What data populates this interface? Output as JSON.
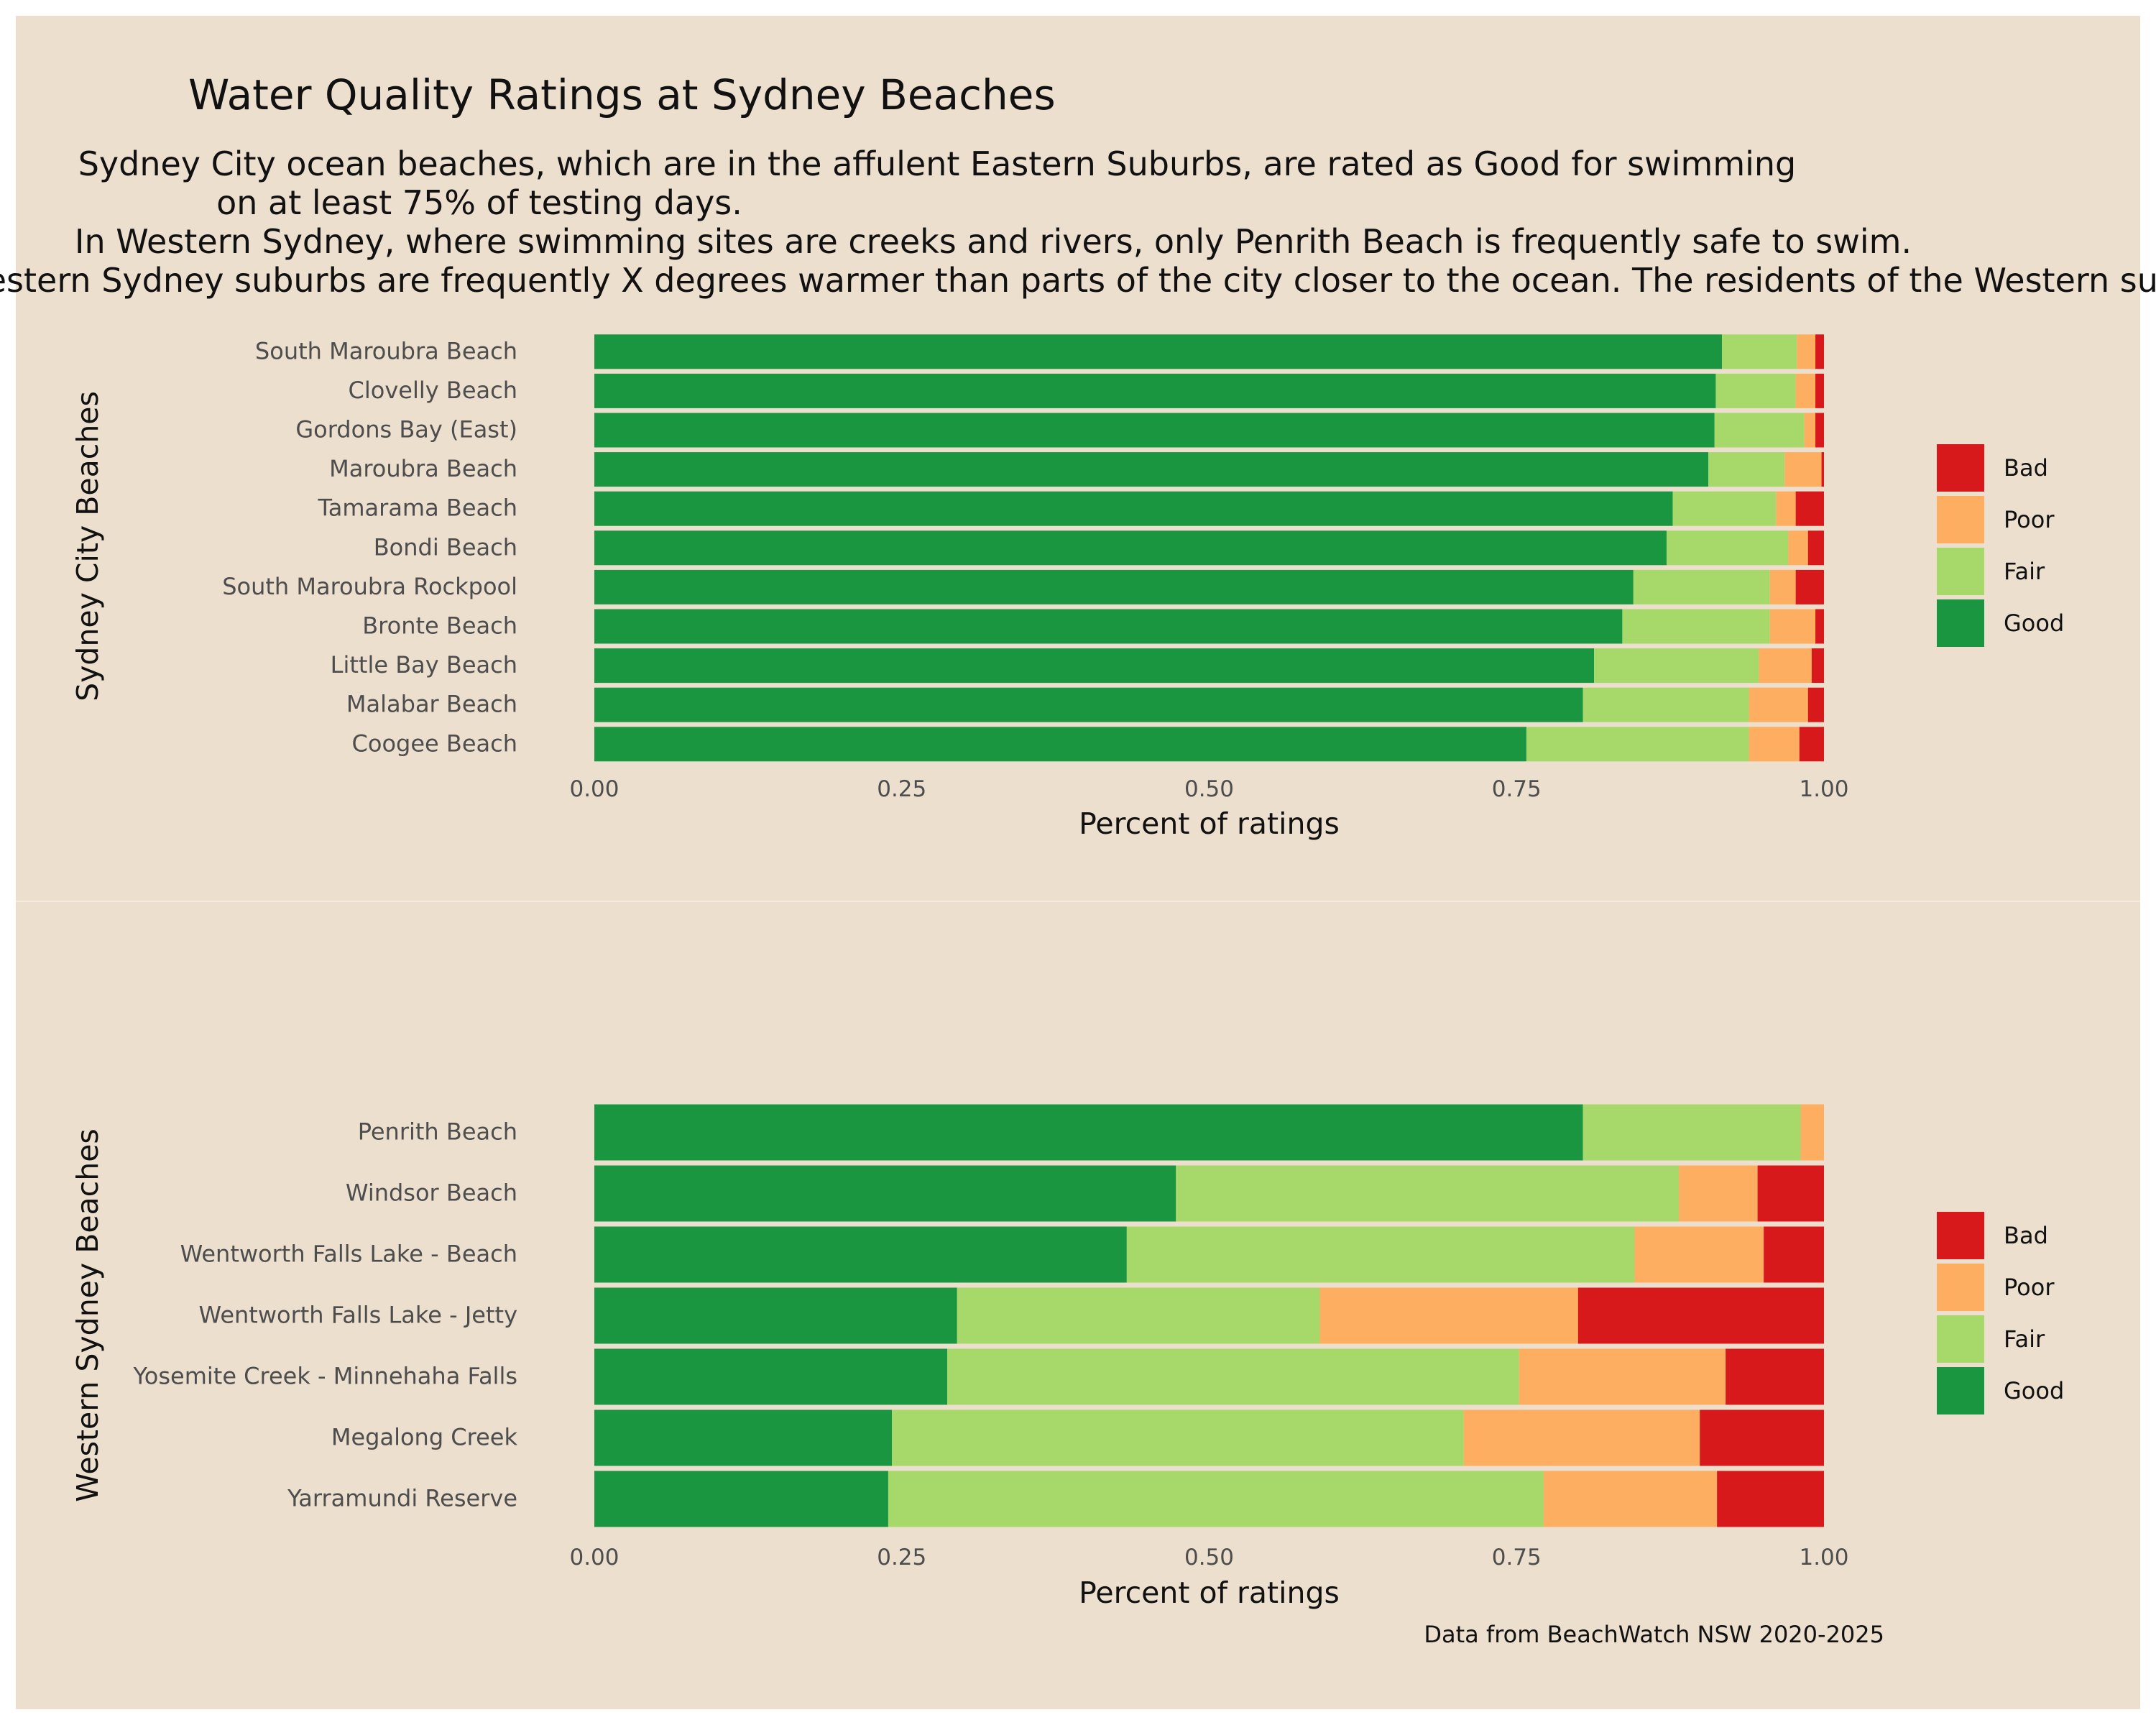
{
  "title": "Water Quality Ratings at Sydney Beaches",
  "subtitle_lines": [
    "Sydney City ocean beaches, which are in the affulent Eastern Suburbs, are rated as Good for swimming",
    "on at least 75% of testing days.",
    "In Western Sydney, where swimming sites are creeks and rivers, only Penrith Beach is frequently safe to swim.",
    "Western Sydney suburbs are frequently X degrees warmer than parts of the city closer to the ocean. The residents of the Western sub"
  ],
  "caption": "Data from BeachWatch NSW 2020-2025",
  "colors": {
    "background": "#ecdfce",
    "Good": "#1a9641",
    "Fair": "#a6d96a",
    "Poor": "#fdae61",
    "Bad": "#d7191c"
  },
  "chart_data": [
    {
      "type": "bar",
      "orientation": "horizontal",
      "stacked": true,
      "ylabel": "Sydney City Beaches",
      "xlabel": "Percent of ratings",
      "xlim": [
        0,
        1
      ],
      "xticks": [
        "0.00",
        "0.25",
        "0.50",
        "0.75",
        "1.00"
      ],
      "legend": {
        "placement": "right",
        "entries": [
          "Bad",
          "Poor",
          "Fair",
          "Good"
        ]
      },
      "categories": [
        "South Maroubra Beach",
        "Clovelly Beach",
        "Gordons Bay (East)",
        "Maroubra Beach",
        "Tamarama Beach",
        "Bondi Beach",
        "South Maroubra Rockpool",
        "Bronte Beach",
        "Little Bay Beach",
        "Malabar Beach",
        "Coogee Beach"
      ],
      "series": [
        {
          "name": "Good",
          "values": [
            0.917,
            0.912,
            0.911,
            0.906,
            0.877,
            0.872,
            0.845,
            0.836,
            0.813,
            0.804,
            0.758
          ]
        },
        {
          "name": "Fair",
          "values": [
            0.061,
            0.065,
            0.073,
            0.062,
            0.084,
            0.099,
            0.111,
            0.12,
            0.134,
            0.135,
            0.181
          ]
        },
        {
          "name": "Poor",
          "values": [
            0.015,
            0.016,
            0.009,
            0.03,
            0.016,
            0.016,
            0.021,
            0.037,
            0.043,
            0.048,
            0.041
          ]
        },
        {
          "name": "Bad",
          "values": [
            0.007,
            0.007,
            0.007,
            0.002,
            0.023,
            0.013,
            0.023,
            0.007,
            0.01,
            0.013,
            0.02
          ]
        }
      ]
    },
    {
      "type": "bar",
      "orientation": "horizontal",
      "stacked": true,
      "ylabel": "Western Sydney Beaches",
      "xlabel": "Percent of ratings",
      "xlim": [
        0,
        1
      ],
      "xticks": [
        "0.00",
        "0.25",
        "0.50",
        "0.75",
        "1.00"
      ],
      "legend": {
        "placement": "right",
        "entries": [
          "Bad",
          "Poor",
          "Fair",
          "Good"
        ]
      },
      "categories": [
        "Penrith Beach",
        "Windsor Beach",
        "Wentworth Falls Lake - Beach",
        "Wentworth Falls Lake - Jetty",
        "Yosemite Creek - Minnehaha Falls",
        "Megalong Creek",
        "Yarramundi Reserve"
      ],
      "series": [
        {
          "name": "Good",
          "values": [
            0.804,
            0.473,
            0.433,
            0.295,
            0.287,
            0.242,
            0.239
          ]
        },
        {
          "name": "Fair",
          "values": [
            0.177,
            0.409,
            0.413,
            0.295,
            0.465,
            0.465,
            0.533
          ]
        },
        {
          "name": "Poor",
          "values": [
            0.019,
            0.064,
            0.105,
            0.21,
            0.168,
            0.192,
            0.141
          ]
        },
        {
          "name": "Bad",
          "values": [
            0.0,
            0.054,
            0.049,
            0.2,
            0.08,
            0.101,
            0.087
          ]
        }
      ]
    }
  ]
}
